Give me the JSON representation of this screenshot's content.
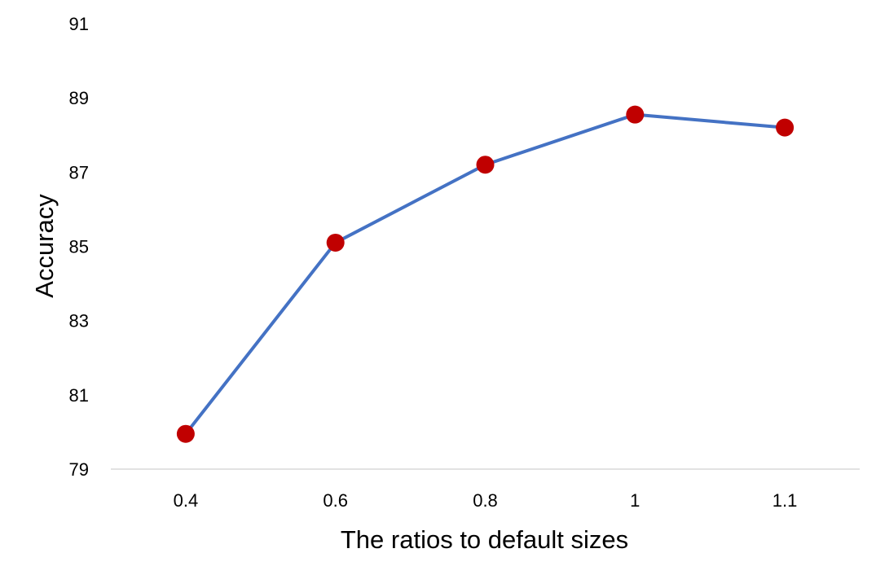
{
  "chart_data": {
    "type": "line",
    "title": "",
    "xlabel": "The ratios to  default sizes",
    "ylabel": "Accuracy",
    "categories": [
      "0.4",
      "0.6",
      "0.8",
      "1",
      "1.1"
    ],
    "series": [
      {
        "values": [
          79.95,
          85.1,
          87.2,
          88.55,
          88.2
        ]
      }
    ],
    "ylim": [
      79,
      91
    ],
    "yticks": [
      "79",
      "81",
      "83",
      "85",
      "87",
      "89",
      "91"
    ],
    "grid": false,
    "legend": "none",
    "colors": {
      "line": "#4472C4",
      "marker": "#C00000",
      "axis": "#D9D9D9"
    }
  }
}
